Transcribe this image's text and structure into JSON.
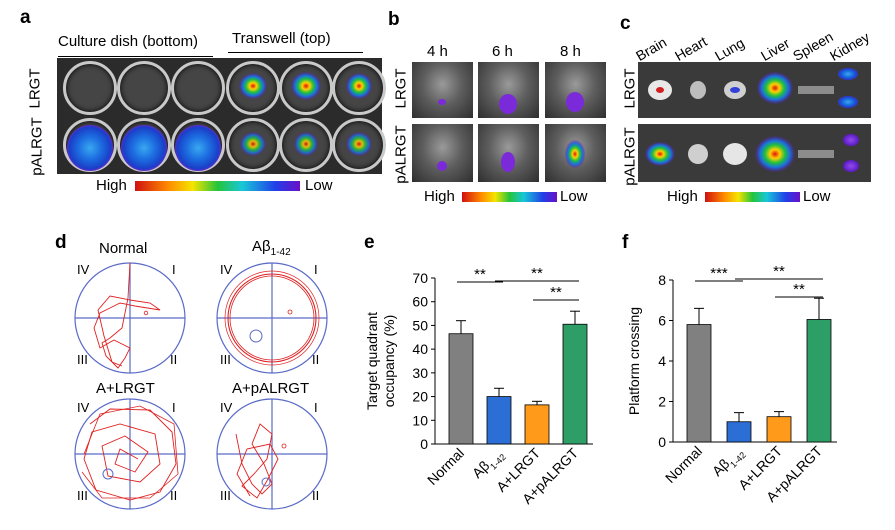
{
  "panels": {
    "a": {
      "label": "a",
      "header_left": "Culture dish (bottom)",
      "header_right": "Transwell (top)",
      "rows": [
        "LRGT",
        "pALRGT"
      ],
      "scale_high": "High",
      "scale_low": "Low"
    },
    "b": {
      "label": "b",
      "times": [
        "4 h",
        "6 h",
        "8 h"
      ],
      "rows": [
        "LRGT",
        "pALRGT"
      ],
      "scale_high": "High",
      "scale_low": "Low"
    },
    "c": {
      "label": "c",
      "organs": [
        "Brain",
        "Heart",
        "Lung",
        "Liver",
        "Spleen",
        "Kidney"
      ],
      "rows": [
        "LRGT",
        "pALRGT"
      ],
      "scale_high": "High",
      "scale_low": "Low"
    },
    "d": {
      "label": "d",
      "titles": [
        "Normal",
        "Aβ",
        "A+LRGT",
        "A+pALRGT"
      ],
      "title_sub": "1-42",
      "quadrants": [
        "I",
        "II",
        "III",
        "IV"
      ]
    },
    "e": {
      "label": "e"
    },
    "f": {
      "label": "f"
    }
  },
  "chart_data": [
    {
      "type": "bar",
      "panel": "e",
      "categories": [
        "Normal",
        "Aβ1-42",
        "A+LRGT",
        "A+pALRGT"
      ],
      "values": [
        46.5,
        20,
        16.5,
        50.5
      ],
      "errors": [
        5.5,
        3.5,
        1.5,
        5.5
      ],
      "ylabel": "Target quadrant occupancy (%)",
      "ylim": [
        0,
        70
      ],
      "yticks": [
        0,
        10,
        20,
        30,
        40,
        50,
        60,
        70
      ],
      "colors": [
        "#808080",
        "#2b6fd6",
        "#ff9a1a",
        "#2e9e67"
      ],
      "significance": [
        {
          "from": 0,
          "to": 1,
          "label": "**"
        },
        {
          "from": 1,
          "to": 3,
          "label": "**"
        },
        {
          "from": 2,
          "to": 3,
          "label": "**"
        }
      ]
    },
    {
      "type": "bar",
      "panel": "f",
      "categories": [
        "Normal",
        "Aβ1-42",
        "A+LRGT",
        "A+pALRGT"
      ],
      "values": [
        5.8,
        1.0,
        1.25,
        6.05
      ],
      "errors": [
        0.8,
        0.45,
        0.25,
        1.05
      ],
      "ylabel": "Platform crossing",
      "ylim": [
        0,
        8
      ],
      "yticks": [
        0,
        2,
        4,
        6,
        8
      ],
      "colors": [
        "#808080",
        "#2b6fd6",
        "#ff9a1a",
        "#2e9e67"
      ],
      "significance": [
        {
          "from": 0,
          "to": 1,
          "label": "***"
        },
        {
          "from": 1,
          "to": 3,
          "label": "**"
        },
        {
          "from": 2,
          "to": 3,
          "label": "**"
        }
      ]
    }
  ]
}
